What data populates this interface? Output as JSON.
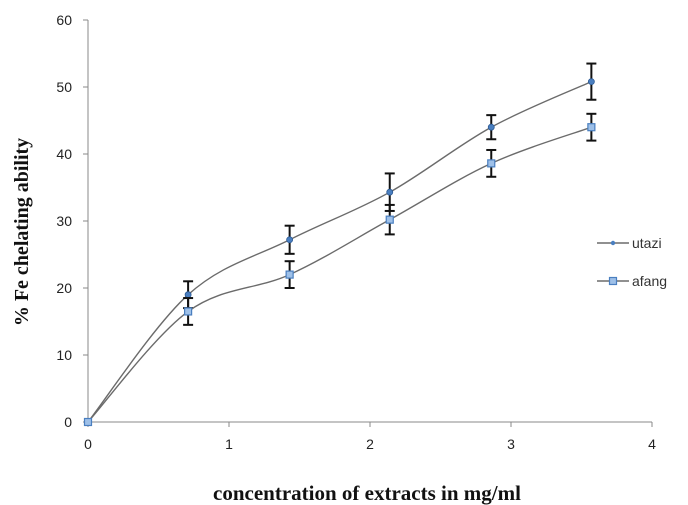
{
  "chart_data": {
    "type": "line",
    "title": "",
    "xlabel": "concentration of extracts in mg/ml",
    "ylabel": "% Fe chelating ability",
    "xlim": [
      0,
      4
    ],
    "ylim": [
      0,
      60
    ],
    "xticks": [
      "0",
      "1",
      "2",
      "3",
      "4"
    ],
    "yticks": [
      "0",
      "10",
      "20",
      "30",
      "40",
      "50",
      "60"
    ],
    "grid": false,
    "legend_position": "right",
    "smooth": true,
    "error_bars": true,
    "series": [
      {
        "name": "utazi",
        "color": "#555555",
        "marker": "diamond",
        "x": [
          0,
          0.71,
          1.43,
          2.14,
          2.86,
          3.57
        ],
        "y": [
          0,
          19.0,
          27.2,
          34.3,
          44.0,
          50.8
        ],
        "err": [
          0,
          2.0,
          2.1,
          2.8,
          1.8,
          2.7
        ]
      },
      {
        "name": "afang",
        "color": "#4a7fc0",
        "marker": "square",
        "x": [
          0,
          0.71,
          1.43,
          2.14,
          2.86,
          3.57
        ],
        "y": [
          0,
          16.5,
          22.0,
          30.2,
          38.6,
          44.0
        ],
        "err": [
          0,
          2.0,
          2.0,
          2.2,
          2.0,
          2.0
        ]
      }
    ]
  }
}
